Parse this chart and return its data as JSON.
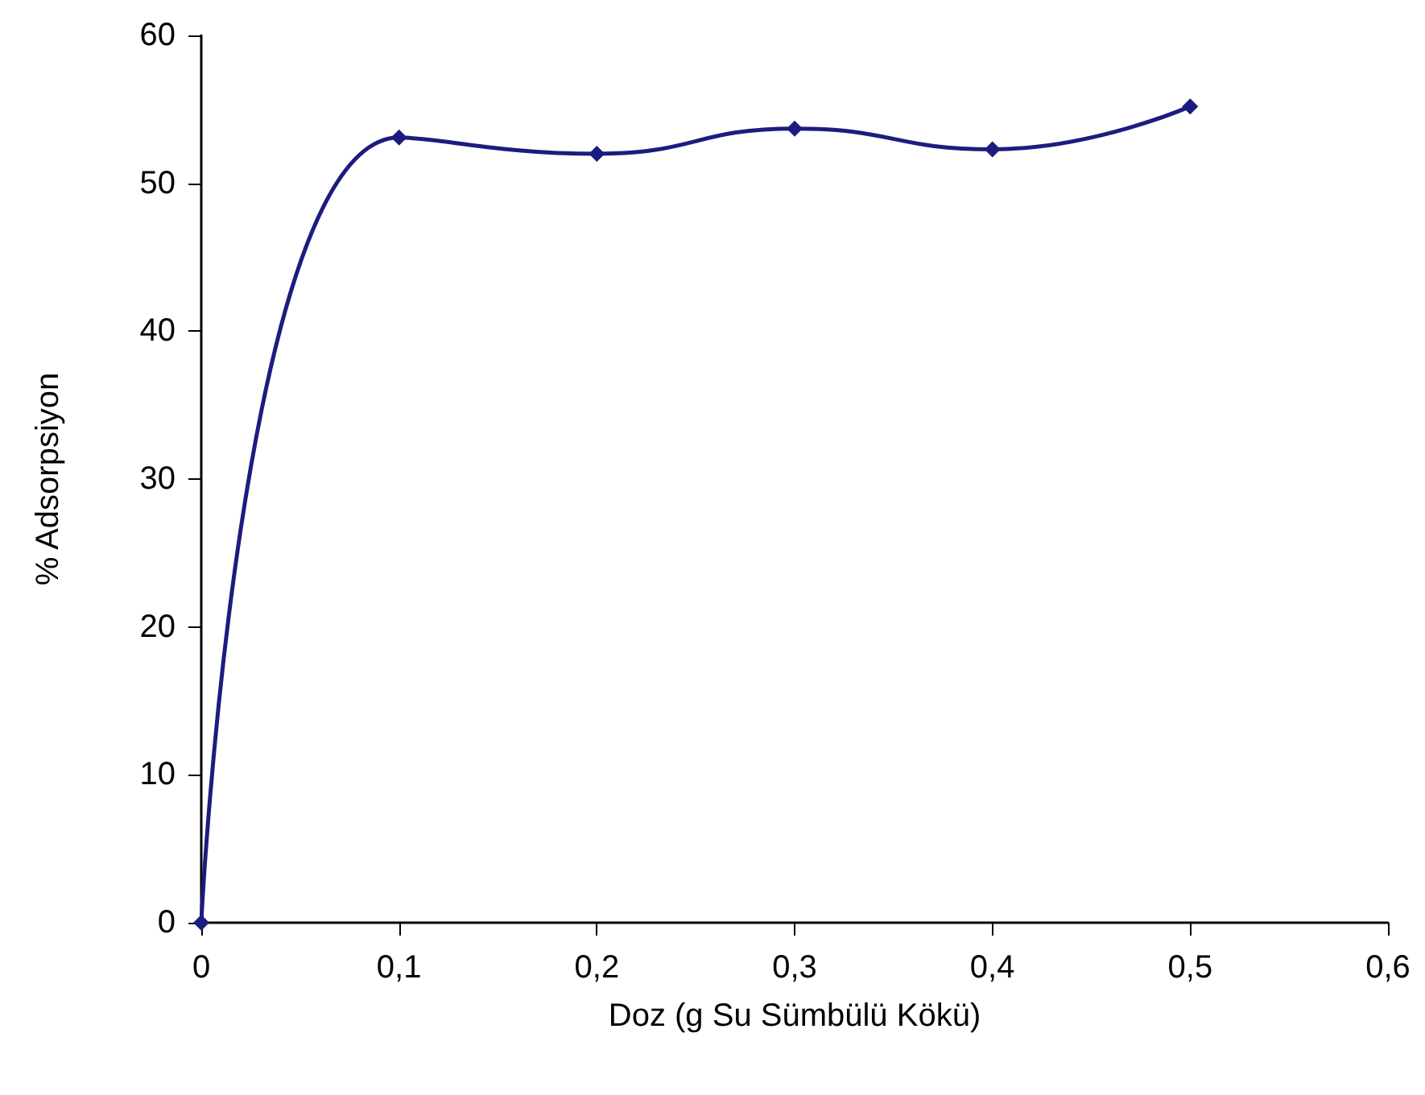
{
  "chart_data": {
    "type": "line",
    "xlabel": "Doz (g Su Sümbülü Kökü)",
    "ylabel": "% Adsorpsiyon",
    "x": [
      0,
      0.1,
      0.2,
      0.3,
      0.4,
      0.5
    ],
    "series": [
      {
        "color": "#1c1c80",
        "values": [
          0,
          53.1,
          52,
          53.7,
          52.3,
          55.2
        ]
      }
    ],
    "xlim": [
      0,
      0.6
    ],
    "xticks": [
      0,
      {
        "value": 0.1,
        "label": "0,1"
      },
      {
        "value": 0.2,
        "label": "0,2"
      },
      {
        "value": 0.3,
        "label": "0,3"
      },
      {
        "value": 0.4,
        "label": "0,4"
      },
      {
        "value": 0.5,
        "label": "0,5"
      },
      {
        "value": 0.6,
        "label": "0,6"
      }
    ],
    "ylim": [
      0,
      60
    ],
    "yticks": [
      0,
      10,
      20,
      30,
      40,
      50,
      60
    ],
    "grid": false,
    "marker": "diamond",
    "line_style": "solid"
  }
}
